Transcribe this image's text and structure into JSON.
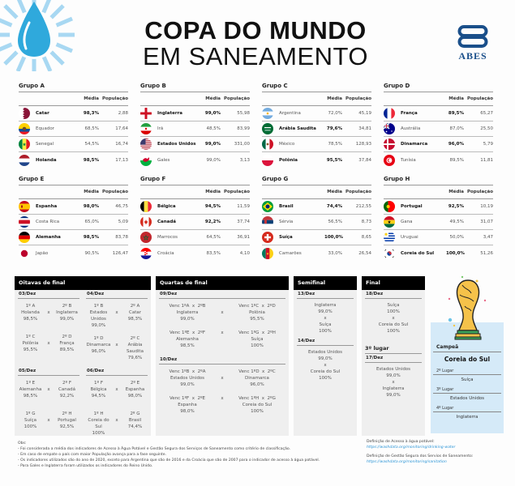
{
  "header": {
    "title_line1": "COPA DO MUNDO",
    "title_line2": "EM SANEAMENTO",
    "logo_text": "ABES"
  },
  "colors": {
    "drop": "#2fa9dc",
    "rays": "#a8d8f2",
    "panel_bg": "#efefef",
    "panel_head": "#000000",
    "champion_bg": "#d5eaf8",
    "link": "#2a94d6",
    "logo": "#1a4f8a"
  },
  "columns": {
    "media": "Média",
    "populacao": "População"
  },
  "groups": [
    {
      "name": "Grupo A",
      "teams": [
        {
          "country": "Catar",
          "media": "98,3%",
          "pop": "2,88",
          "bold": true,
          "flag": "qatar"
        },
        {
          "country": "Equador",
          "media": "68,5%",
          "pop": "17,64",
          "bold": false,
          "flag": "ecuador"
        },
        {
          "country": "Senegal",
          "media": "54,5%",
          "pop": "16,74",
          "bold": false,
          "flag": "senegal"
        },
        {
          "country": "Holanda",
          "media": "98,5%",
          "pop": "17,13",
          "bold": true,
          "flag": "netherlands"
        }
      ]
    },
    {
      "name": "Grupo B",
      "teams": [
        {
          "country": "Inglaterra",
          "media": "99,0%",
          "pop": "55,98",
          "bold": true,
          "flag": "england"
        },
        {
          "country": "Irã",
          "media": "48,5%",
          "pop": "83,99",
          "bold": false,
          "flag": "iran"
        },
        {
          "country": "Estados Unidos",
          "media": "99,0%",
          "pop": "331,00",
          "bold": true,
          "flag": "usa"
        },
        {
          "country": "Gales",
          "media": "99,0%",
          "pop": "3,13",
          "bold": false,
          "flag": "wales"
        }
      ]
    },
    {
      "name": "Grupo C",
      "teams": [
        {
          "country": "Argentina",
          "media": "72,0%",
          "pop": "45,19",
          "bold": false,
          "flag": "argentina"
        },
        {
          "country": "Arábia Saudita",
          "media": "79,6%",
          "pop": "34,81",
          "bold": true,
          "flag": "saudi"
        },
        {
          "country": "México",
          "media": "78,5%",
          "pop": "128,93",
          "bold": false,
          "flag": "mexico"
        },
        {
          "country": "Polônia",
          "media": "95,5%",
          "pop": "37,84",
          "bold": true,
          "flag": "poland"
        }
      ]
    },
    {
      "name": "Grupo D",
      "teams": [
        {
          "country": "França",
          "media": "89,5%",
          "pop": "65,27",
          "bold": true,
          "flag": "france"
        },
        {
          "country": "Austrália",
          "media": "87,0%",
          "pop": "25,50",
          "bold": false,
          "flag": "australia"
        },
        {
          "country": "Dinamarca",
          "media": "96,0%",
          "pop": "5,79",
          "bold": true,
          "flag": "denmark"
        },
        {
          "country": "Tunísia",
          "media": "89,5%",
          "pop": "11,81",
          "bold": false,
          "flag": "tunisia"
        }
      ]
    },
    {
      "name": "Grupo E",
      "teams": [
        {
          "country": "Espanha",
          "media": "98,0%",
          "pop": "46,75",
          "bold": true,
          "flag": "spain"
        },
        {
          "country": "Costa Rica",
          "media": "65,0%",
          "pop": "5,09",
          "bold": false,
          "flag": "costarica"
        },
        {
          "country": "Alemanha",
          "media": "98,5%",
          "pop": "83,78",
          "bold": true,
          "flag": "germany"
        },
        {
          "country": "Japão",
          "media": "90,5%",
          "pop": "126,47",
          "bold": false,
          "flag": "japan"
        }
      ]
    },
    {
      "name": "Grupo F",
      "teams": [
        {
          "country": "Bélgica",
          "media": "94,5%",
          "pop": "11,59",
          "bold": true,
          "flag": "belgium"
        },
        {
          "country": "Canadá",
          "media": "92,2%",
          "pop": "37,74",
          "bold": true,
          "flag": "canada"
        },
        {
          "country": "Marrocos",
          "media": "64,5%",
          "pop": "36,91",
          "bold": false,
          "flag": "morocco"
        },
        {
          "country": "Croácia",
          "media": "83,5%",
          "pop": "4,10",
          "bold": false,
          "flag": "croatia"
        }
      ]
    },
    {
      "name": "Grupo G",
      "teams": [
        {
          "country": "Brasil",
          "media": "74,4%",
          "pop": "212,55",
          "bold": true,
          "flag": "brazil"
        },
        {
          "country": "Sérvia",
          "media": "56,5%",
          "pop": "8,73",
          "bold": false,
          "flag": "serbia"
        },
        {
          "country": "Suíça",
          "media": "100,0%",
          "pop": "8,65",
          "bold": true,
          "flag": "switzerland"
        },
        {
          "country": "Camarões",
          "media": "33,0%",
          "pop": "26,54",
          "bold": false,
          "flag": "cameroon"
        }
      ]
    },
    {
      "name": "Grupo H",
      "teams": [
        {
          "country": "Portugal",
          "media": "92,5%",
          "pop": "10,19",
          "bold": true,
          "flag": "portugal"
        },
        {
          "country": "Gana",
          "media": "49,5%",
          "pop": "31,07",
          "bold": false,
          "flag": "ghana"
        },
        {
          "country": "Uruguai",
          "media": "50,0%",
          "pop": "3,47",
          "bold": false,
          "flag": "uruguay"
        },
        {
          "country": "Coreia do Sul",
          "media": "100,0%",
          "pop": "51,26",
          "bold": true,
          "flag": "korea"
        }
      ]
    }
  ],
  "oitavas": {
    "title": "Oitavas de final",
    "vs": "x",
    "days": [
      {
        "date": "03/Dez",
        "matches": [
          {
            "a_pos": "1º A",
            "a_team": "Holanda",
            "a_val": "98,5%",
            "b_pos": "2º B",
            "b_team": "Inglaterra",
            "b_val": "99,0%"
          },
          {
            "a_pos": "1º C",
            "a_team": "Polônia",
            "a_val": "95,5%",
            "b_pos": "2º D",
            "b_team": "França",
            "b_val": "89,5%"
          }
        ]
      },
      {
        "date": "04/Dez",
        "matches": [
          {
            "a_pos": "1º B",
            "a_team": "Estados Unidos",
            "a_val": "99,0%",
            "b_pos": "2º A",
            "b_team": "Catar",
            "b_val": "98,3%"
          },
          {
            "a_pos": "1º D",
            "a_team": "Dinamarca",
            "a_val": "96,0%",
            "b_pos": "2º C",
            "b_team": "Arábia Saudita",
            "b_val": "79,6%"
          }
        ]
      },
      {
        "date": "05/Dez",
        "matches": [
          {
            "a_pos": "1º E",
            "a_team": "Alemanha",
            "a_val": "98,5%",
            "b_pos": "2º F",
            "b_team": "Canadá",
            "b_val": "92,2%"
          },
          {
            "a_pos": "1º G",
            "a_team": "Suíça",
            "a_val": "100%",
            "b_pos": "2º H",
            "b_team": "Portugal",
            "b_val": "92,5%"
          }
        ]
      },
      {
        "date": "06/Dez",
        "matches": [
          {
            "a_pos": "1º F",
            "a_team": "Bélgica",
            "a_val": "94,5%",
            "b_pos": "2º E",
            "b_team": "Espanha",
            "b_val": "98,0%"
          },
          {
            "a_pos": "1º H",
            "a_team": "Coreia do Sul",
            "a_val": "100%",
            "b_pos": "2º G",
            "b_team": "Brasil",
            "b_val": "74,4%"
          }
        ]
      }
    ]
  },
  "quartas": {
    "title": "Quartas de final",
    "vs": "x",
    "days": [
      {
        "date": "09/Dez",
        "matches": [
          {
            "a_label": "Venc 1ºA  x  2ºB",
            "a_team": "Inglaterra",
            "a_val": "99,0%",
            "b_label": "Venc 1ºC  x  2ºD",
            "b_team": "Polônia",
            "b_val": "95,5%"
          },
          {
            "a_label": "Venc 1ºE  x  2ºF",
            "a_team": "Alemanha",
            "a_val": "98,5%",
            "b_label": "Venc 1ºG  x  2ºH",
            "b_team": "Suíça",
            "b_val": "100%"
          }
        ]
      },
      {
        "date": "10/Dez",
        "matches": [
          {
            "a_label": "Venc 1ºB  x  2ºA",
            "a_team": "Estados Unidos",
            "a_val": "99,0%",
            "b_label": "Venc 1ºD  x  2ºC",
            "b_team": "Dinamarca",
            "b_val": "96,0%"
          },
          {
            "a_label": "Venc 1ºF  x  2ºE",
            "a_team": "Espanha",
            "a_val": "98,0%",
            "b_label": "Venc 1ºH  x  2ºG",
            "b_team": "Coreia do Sul",
            "b_val": "100%"
          }
        ]
      }
    ]
  },
  "semifinal": {
    "title": "Semifinal",
    "vs": "x",
    "days": [
      {
        "date": "13/Dez",
        "a_team": "Inglaterra",
        "a_val": "99,0%",
        "b_team": "Suíça",
        "b_val": "100%"
      },
      {
        "date": "14/Dez",
        "a_team": "Estados Unidos",
        "a_val": "99,0%",
        "b_team": "Coreia do Sul",
        "b_val": "100%"
      }
    ]
  },
  "final": {
    "title": "Final",
    "vs": "x",
    "final_match": {
      "date": "18/Dez",
      "a_team": "Suíça",
      "a_val": "100%",
      "b_team": "Coreia do Sul",
      "b_val": "100%"
    },
    "third_title": "3º lugar",
    "third_match": {
      "date": "17/Dez",
      "a_team": "Estados Unidos",
      "a_val": "99,0%",
      "b_team": "Inglaterra",
      "b_val": "99,0%"
    }
  },
  "podium": {
    "champion_label": "Campeã",
    "champion": "Coreia do Sul",
    "second_label": "2º Lugar",
    "second": "Suíça",
    "third_label": "3º Lugar",
    "third": "Estados Unidos",
    "fourth_label": "4º Lugar",
    "fourth": "Inglaterra"
  },
  "notes": {
    "title": "Obs:",
    "lines": [
      "- Foi considerada a média dos indicadores de Acesso à Água Potável e Gestão Segura dos Serviços de Saneamento como critério de classificação.",
      "- Em caso de empate o país com maior População avança para a fase seguinte.",
      "- Os indicadores utilizados são do ano de 2020, exceto para Argentina que são de 2016 e da Croácia que são de 2007 para o indicador de acesso à água potável.",
      "- Para Gales e Inglaterra foram utilizados os indicadores do Reino Unido."
    ]
  },
  "definitions": [
    {
      "label": "Definição de Acesso à água potável:",
      "link": "https://washdata.org/monitoring/drinking-water"
    },
    {
      "label": "Definição de Gestão Segura dos Servios de Saneamento:",
      "link": "https://washdata.org/monitoring/sanitation"
    }
  ]
}
